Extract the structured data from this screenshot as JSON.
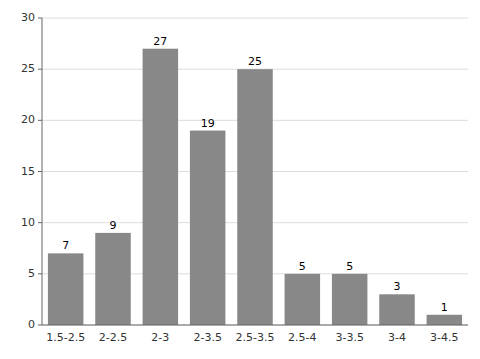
{
  "chart_data": {
    "type": "bar",
    "categories": [
      "1.5-2.5",
      "2-2.5",
      "2-3",
      "2-3.5",
      "2.5-3.5",
      "2.5-4",
      "3-3.5",
      "3-4",
      "3-4.5"
    ],
    "values": [
      7,
      9,
      27,
      19,
      25,
      5,
      5,
      3,
      1
    ],
    "color": "#888888",
    "ylim": [
      0,
      30
    ],
    "yticks": [
      0,
      5,
      10,
      15,
      20,
      25,
      30
    ],
    "grid": true,
    "data_labels": true
  }
}
